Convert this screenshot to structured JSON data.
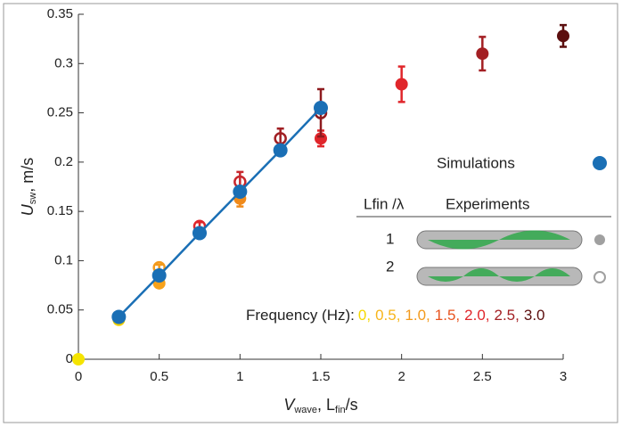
{
  "chart_data": {
    "type": "scatter",
    "x_label": {
      "main": "V",
      "sub": "wave",
      "rest": ", L",
      "sub2": "fin",
      "end": "/s"
    },
    "y_label": {
      "main": "U",
      "sub": "sw",
      "rest": ", m/s"
    },
    "xlim": [
      0,
      3
    ],
    "ylim": [
      0,
      0.35
    ],
    "xticks": [
      0,
      0.5,
      1,
      1.5,
      2,
      2.5,
      3
    ],
    "yticks": [
      0,
      0.05,
      0.1,
      0.15,
      0.2,
      0.25,
      0.3,
      0.35
    ],
    "simulations": {
      "name": "Simulations",
      "color": "#1a6fb5",
      "x": [
        0.25,
        0.5,
        0.75,
        1.0,
        1.25,
        1.5
      ],
      "values": [
        0.043,
        0.085,
        0.128,
        0.17,
        0.212,
        0.255
      ]
    },
    "legend_header": {
      "ratio": "Lfin /λ",
      "experiments": "Experiments"
    },
    "experiments": [
      {
        "name": "1",
        "filled": true,
        "x": [
          0,
          0.25,
          0.5,
          1.0,
          1.5,
          2.0,
          2.5,
          3.0
        ],
        "values": [
          0,
          0.04,
          0.077,
          0.163,
          0.224,
          0.279,
          0.31,
          0.328
        ],
        "errors": [
          null,
          0.003,
          0.004,
          0.008,
          0.008,
          0.018,
          0.017,
          0.011
        ],
        "colors": [
          "#f5e400",
          "#f0d000",
          "#f7a21b",
          "#f08a1a",
          "#e0262b",
          "#e0262b",
          "#a31f23",
          "#5c0f0f"
        ]
      },
      {
        "name": "2",
        "filled": false,
        "x": [
          0.5,
          0.75,
          1.0,
          1.25,
          1.5
        ],
        "values": [
          0.093,
          0.135,
          0.18,
          0.224,
          0.25
        ],
        "errors": [
          0.003,
          0.004,
          0.01,
          0.01,
          0.024
        ],
        "colors": [
          "#f39a1c",
          "#e0262b",
          "#c8272c",
          "#a02024",
          "#8e1b1f"
        ]
      }
    ],
    "frequency": {
      "label": "Frequency (Hz):",
      "values": [
        "0,",
        "0.5,",
        "1.0,",
        "1.5,",
        "2.0,",
        "2.5,",
        "3.0"
      ],
      "colors": [
        "#f5d800",
        "#f7b51b",
        "#f39a1c",
        "#e8541f",
        "#e0262b",
        "#a31f23",
        "#5c0f0f"
      ]
    }
  }
}
